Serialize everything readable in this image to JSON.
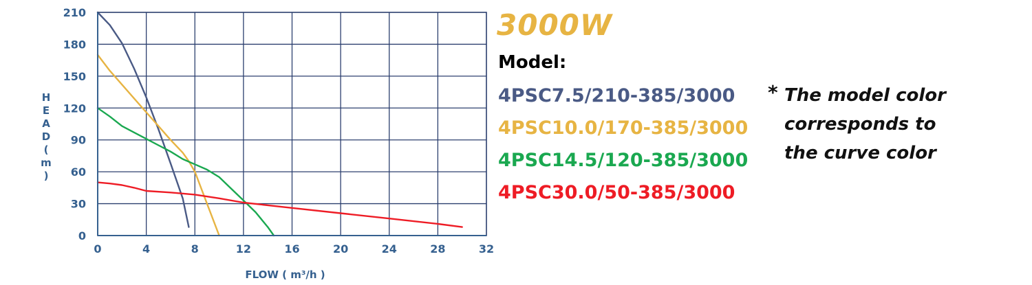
{
  "chart_data": {
    "type": "line",
    "xlabel": "FLOW ( m³/h )",
    "ylabel": "HEAD ( m )",
    "xlim": [
      0,
      32
    ],
    "ylim": [
      0,
      210
    ],
    "xticks": [
      0,
      4,
      8,
      12,
      16,
      20,
      24,
      28,
      32
    ],
    "yticks": [
      0,
      30,
      60,
      90,
      120,
      150,
      180,
      210
    ],
    "grid": true,
    "series": [
      {
        "name": "4PSC7.5/210-385/3000",
        "color": "#4a5a85",
        "points": [
          [
            0,
            210
          ],
          [
            1,
            198
          ],
          [
            2,
            181
          ],
          [
            3,
            157
          ],
          [
            4,
            130
          ],
          [
            5,
            100
          ],
          [
            6,
            68
          ],
          [
            7,
            35
          ],
          [
            7.5,
            8
          ]
        ]
      },
      {
        "name": "4PSC10.0/170-385/3000",
        "color": "#e7b443",
        "points": [
          [
            0,
            170
          ],
          [
            1,
            155
          ],
          [
            2,
            142
          ],
          [
            3,
            129
          ],
          [
            4,
            116
          ],
          [
            5,
            103
          ],
          [
            6,
            90
          ],
          [
            7,
            78
          ],
          [
            7.5,
            70
          ],
          [
            8,
            60
          ],
          [
            9,
            30
          ],
          [
            10,
            0
          ]
        ]
      },
      {
        "name": "4PSC14.5/120-385/3000",
        "color": "#1aa850",
        "points": [
          [
            0,
            120
          ],
          [
            1,
            112
          ],
          [
            2,
            103
          ],
          [
            3,
            97
          ],
          [
            4,
            91
          ],
          [
            5,
            85
          ],
          [
            6,
            79
          ],
          [
            7,
            72
          ],
          [
            8,
            67
          ],
          [
            9,
            62
          ],
          [
            10,
            55
          ],
          [
            11,
            44
          ],
          [
            12,
            33
          ],
          [
            13,
            22
          ],
          [
            14,
            8
          ],
          [
            14.5,
            0
          ]
        ]
      },
      {
        "name": "4PSC30.0/50-385/3000",
        "color": "#ee1c25",
        "points": [
          [
            0,
            50
          ],
          [
            1,
            49
          ],
          [
            2,
            47.5
          ],
          [
            3,
            45
          ],
          [
            4,
            42
          ],
          [
            6,
            40.5
          ],
          [
            8,
            38.5
          ],
          [
            10,
            35
          ],
          [
            12,
            31
          ],
          [
            14,
            28.5
          ],
          [
            16,
            26
          ],
          [
            20,
            21
          ],
          [
            24,
            16
          ],
          [
            28,
            11
          ],
          [
            30,
            8
          ]
        ]
      }
    ]
  },
  "panel": {
    "power": "3000W",
    "power_color": "#e7b443",
    "model_label": "Model:",
    "models": [
      {
        "text": "4PSC7.5/210-385/3000",
        "color": "#4a5a85"
      },
      {
        "text": "4PSC10.0/170-385/3000",
        "color": "#e7b443"
      },
      {
        "text": "4PSC14.5/120-385/3000",
        "color": "#1aa850"
      },
      {
        "text": "4PSC30.0/50-385/3000",
        "color": "#ee1c25"
      }
    ],
    "note_star": "*",
    "note_lines": [
      "The model color",
      "corresponds to",
      "the curve color"
    ]
  },
  "colors": {
    "axis": "#35608f",
    "grid": "#2b3f6e"
  }
}
